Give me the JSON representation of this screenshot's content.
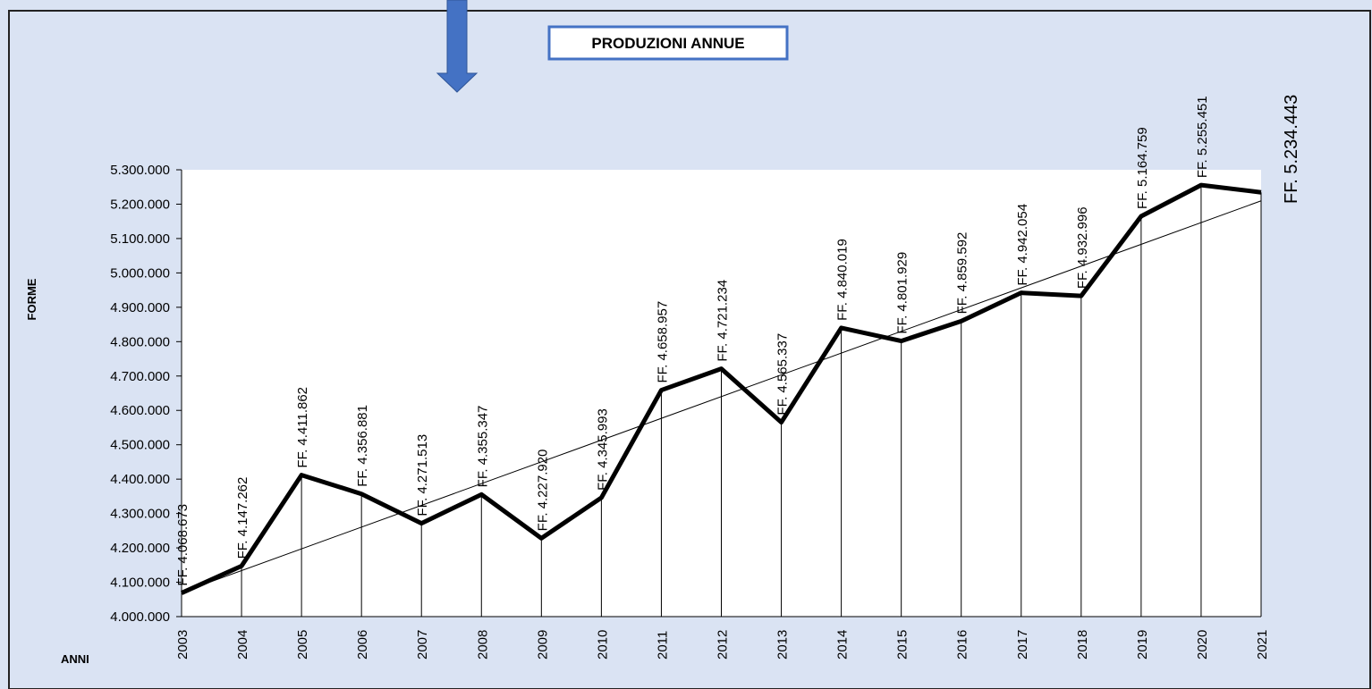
{
  "chart_data": {
    "type": "line",
    "title": "PRODUZIONI ANNUE",
    "y_label": "FORME",
    "x_label": "ANNI",
    "categories": [
      "2003",
      "2004",
      "2005",
      "2006",
      "2007",
      "2008",
      "2009",
      "2010",
      "2011",
      "2012",
      "2013",
      "2014",
      "2015",
      "2016",
      "2017",
      "2018",
      "2019",
      "2020",
      "2021"
    ],
    "values": [
      4068673,
      4147262,
      4411862,
      4356881,
      4271513,
      4355347,
      4227920,
      4345993,
      4658957,
      4721234,
      4565337,
      4840019,
      4801929,
      4859592,
      4942054,
      4932996,
      5164759,
      5255451,
      5234443
    ],
    "value_labels": [
      "FF. 4.068.673",
      "FF. 4.147.262",
      "FF. 4.411.862",
      "FF. 4.356.881",
      "FF. 4.271.513",
      "FF. 4.355.347",
      "FF. 4.227.920",
      "FF. 4.345.993",
      "FF. 4.658.957",
      "FF. 4.721.234",
      "FF. 4.565.337",
      "FF. 4.840.019",
      "FF. 4.801.929",
      "FF. 4.859.592",
      "FF. 4.942.054",
      "FF. 4.932.996",
      "FF. 5.164.759",
      "FF. 5.255.451",
      "FF. 5.234.443"
    ],
    "color": "#000000",
    "ylim": [
      4000000,
      5300000
    ],
    "yticks": [
      {
        "value": 4000000,
        "label": "4.000.000"
      },
      {
        "value": 4100000,
        "label": "4.100.000"
      },
      {
        "value": 4200000,
        "label": "4.200.000"
      },
      {
        "value": 4300000,
        "label": "4.300.000"
      },
      {
        "value": 4400000,
        "label": "4.400.000"
      },
      {
        "value": 4500000,
        "label": "4.500.000"
      },
      {
        "value": 4600000,
        "label": "4.600.000"
      },
      {
        "value": 4700000,
        "label": "4.700.000"
      },
      {
        "value": 4800000,
        "label": "4.800.000"
      },
      {
        "value": 4900000,
        "label": "4.900.000"
      },
      {
        "value": 5000000,
        "label": "5.000.000"
      },
      {
        "value": 5100000,
        "label": "5.100.000"
      },
      {
        "value": 5200000,
        "label": "5.200.000"
      },
      {
        "value": 5300000,
        "label": "5.300.000"
      }
    ],
    "trendline": true
  }
}
